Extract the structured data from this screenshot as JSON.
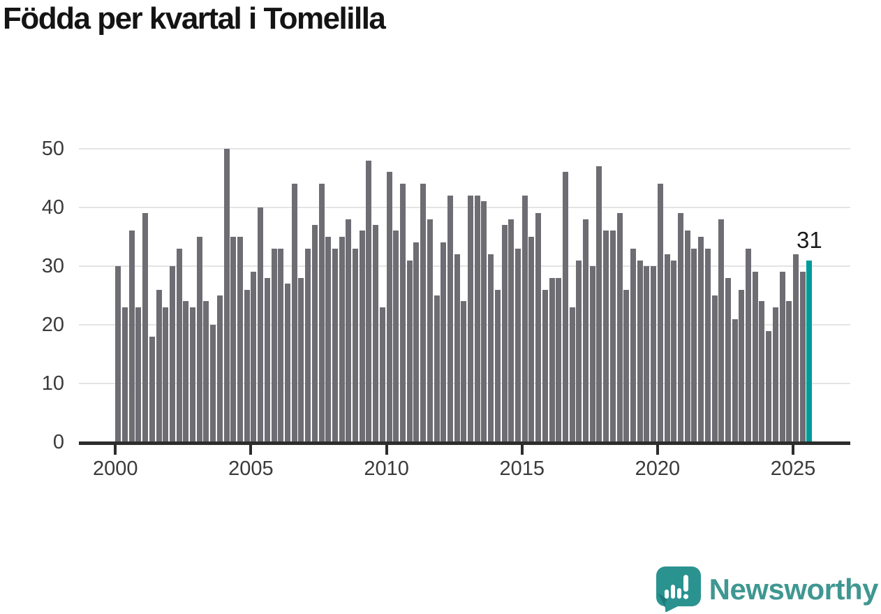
{
  "title": "Födda per kvartal i Tomelilla",
  "annotation": {
    "value": "31"
  },
  "branding": {
    "name": "Newsworthy"
  },
  "colors": {
    "bar": "#6d6d73",
    "highlight": "#009b9b",
    "gridline": "#e4e4e4",
    "axis": "#2d2d2d",
    "logo_icon": "#2a9390",
    "logo_icon_shade": "#1e7b79",
    "logo_text": "#3f9791"
  },
  "chart_data": {
    "type": "bar",
    "title": "Födda per kvartal i Tomelilla",
    "xlabel": "",
    "ylabel": "",
    "x_start": "2000 Q1",
    "x_end": "2025 Q3",
    "x_tick_labels": [
      "2000",
      "2005",
      "2010",
      "2015",
      "2020",
      "2025"
    ],
    "y_ticks": [
      0,
      10,
      20,
      30,
      40,
      50
    ],
    "ylim": [
      0,
      50
    ],
    "grid": true,
    "legend": false,
    "highlight_last_bar": true,
    "highlight_value": 31,
    "values": [
      30,
      23,
      36,
      23,
      39,
      18,
      26,
      23,
      30,
      33,
      24,
      23,
      35,
      24,
      20,
      25,
      50,
      35,
      35,
      26,
      29,
      40,
      28,
      33,
      33,
      27,
      44,
      28,
      33,
      37,
      44,
      35,
      33,
      35,
      38,
      33,
      36,
      48,
      37,
      23,
      46,
      36,
      44,
      31,
      34,
      44,
      38,
      25,
      34,
      42,
      32,
      24,
      42,
      42,
      41,
      32,
      26,
      37,
      38,
      33,
      42,
      35,
      39,
      26,
      28,
      28,
      46,
      23,
      31,
      38,
      30,
      47,
      36,
      36,
      39,
      26,
      33,
      31,
      30,
      30,
      44,
      32,
      31,
      39,
      36,
      33,
      35,
      33,
      25,
      38,
      28,
      21,
      26,
      33,
      29,
      24,
      19,
      23,
      29,
      24,
      32,
      29,
      31
    ]
  }
}
